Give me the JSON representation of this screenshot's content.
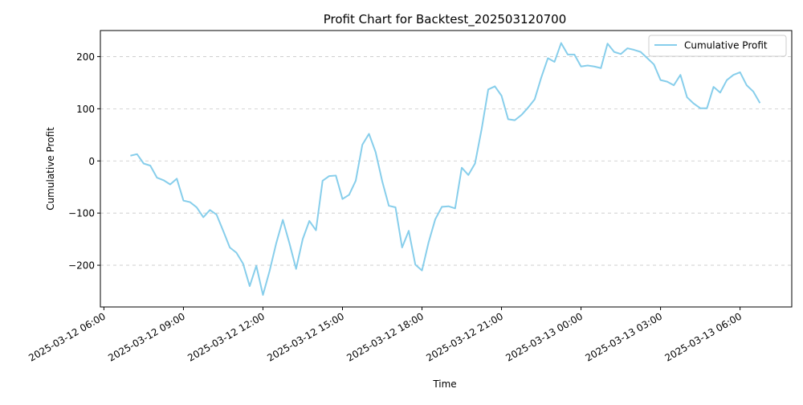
{
  "chart_data": {
    "type": "line",
    "title": "Profit Chart for Backtest_202503120700",
    "xlabel": "Time",
    "ylabel": "Cumulative Profit",
    "grid": "y-only, dashed",
    "legend_position": "top-right",
    "series": [
      {
        "name": "Cumulative Profit",
        "color": "#87CEEB",
        "points": [
          [
            "2025-03-12 07:00",
            10
          ],
          [
            "2025-03-12 07:15",
            13
          ],
          [
            "2025-03-12 07:30",
            -5
          ],
          [
            "2025-03-12 07:45",
            -9
          ],
          [
            "2025-03-12 08:00",
            -32
          ],
          [
            "2025-03-12 08:15",
            -37
          ],
          [
            "2025-03-12 08:30",
            -45
          ],
          [
            "2025-03-12 08:45",
            -34
          ],
          [
            "2025-03-12 09:00",
            -76
          ],
          [
            "2025-03-12 09:15",
            -79
          ],
          [
            "2025-03-12 09:30",
            -89
          ],
          [
            "2025-03-12 09:45",
            -108
          ],
          [
            "2025-03-12 10:00",
            -94
          ],
          [
            "2025-03-12 10:15",
            -103
          ],
          [
            "2025-03-12 10:30",
            -134
          ],
          [
            "2025-03-12 10:45",
            -166
          ],
          [
            "2025-03-12 11:00",
            -176
          ],
          [
            "2025-03-12 11:15",
            -197
          ],
          [
            "2025-03-12 11:30",
            -240
          ],
          [
            "2025-03-12 11:45",
            -201
          ],
          [
            "2025-03-12 12:00",
            -257
          ],
          [
            "2025-03-12 12:15",
            -211
          ],
          [
            "2025-03-12 12:30",
            -158
          ],
          [
            "2025-03-12 12:45",
            -113
          ],
          [
            "2025-03-12 13:00",
            -158
          ],
          [
            "2025-03-12 13:15",
            -207
          ],
          [
            "2025-03-12 13:30",
            -150
          ],
          [
            "2025-03-12 13:45",
            -115
          ],
          [
            "2025-03-12 14:00",
            -133
          ],
          [
            "2025-03-12 14:15",
            -38
          ],
          [
            "2025-03-12 14:30",
            -29
          ],
          [
            "2025-03-12 14:45",
            -28
          ],
          [
            "2025-03-12 15:00",
            -73
          ],
          [
            "2025-03-12 15:15",
            -65
          ],
          [
            "2025-03-12 15:30",
            -38
          ],
          [
            "2025-03-12 15:45",
            31
          ],
          [
            "2025-03-12 16:00",
            52
          ],
          [
            "2025-03-12 16:15",
            17
          ],
          [
            "2025-03-12 16:30",
            -39
          ],
          [
            "2025-03-12 16:45",
            -86
          ],
          [
            "2025-03-12 17:00",
            -89
          ],
          [
            "2025-03-12 17:15",
            -166
          ],
          [
            "2025-03-12 17:30",
            -134
          ],
          [
            "2025-03-12 17:45",
            -199
          ],
          [
            "2025-03-12 18:00",
            -210
          ],
          [
            "2025-03-12 18:15",
            -156
          ],
          [
            "2025-03-12 18:30",
            -112
          ],
          [
            "2025-03-12 18:45",
            -88
          ],
          [
            "2025-03-12 19:00",
            -87
          ],
          [
            "2025-03-12 19:15",
            -91
          ],
          [
            "2025-03-12 19:30",
            -13
          ],
          [
            "2025-03-12 19:45",
            -27
          ],
          [
            "2025-03-12 20:00",
            -5
          ],
          [
            "2025-03-12 20:15",
            61
          ],
          [
            "2025-03-12 20:30",
            137
          ],
          [
            "2025-03-12 20:45",
            143
          ],
          [
            "2025-03-12 21:00",
            125
          ],
          [
            "2025-03-12 21:15",
            80
          ],
          [
            "2025-03-12 21:30",
            78
          ],
          [
            "2025-03-12 21:45",
            88
          ],
          [
            "2025-03-12 22:00",
            102
          ],
          [
            "2025-03-12 22:15",
            118
          ],
          [
            "2025-03-12 22:30",
            160
          ],
          [
            "2025-03-12 22:45",
            197
          ],
          [
            "2025-03-12 23:00",
            190
          ],
          [
            "2025-03-12 23:15",
            226
          ],
          [
            "2025-03-12 23:30",
            204
          ],
          [
            "2025-03-12 23:45",
            204
          ],
          [
            "2025-03-13 00:00",
            181
          ],
          [
            "2025-03-13 00:15",
            183
          ],
          [
            "2025-03-13 00:30",
            181
          ],
          [
            "2025-03-13 00:45",
            178
          ],
          [
            "2025-03-13 01:00",
            225
          ],
          [
            "2025-03-13 01:15",
            209
          ],
          [
            "2025-03-13 01:30",
            205
          ],
          [
            "2025-03-13 01:45",
            216
          ],
          [
            "2025-03-13 02:00",
            213
          ],
          [
            "2025-03-13 02:15",
            209
          ],
          [
            "2025-03-13 02:30",
            197
          ],
          [
            "2025-03-13 02:45",
            185
          ],
          [
            "2025-03-13 03:00",
            155
          ],
          [
            "2025-03-13 03:15",
            152
          ],
          [
            "2025-03-13 03:30",
            145
          ],
          [
            "2025-03-13 03:45",
            165
          ],
          [
            "2025-03-13 04:00",
            122
          ],
          [
            "2025-03-13 04:15",
            110
          ],
          [
            "2025-03-13 04:30",
            101
          ],
          [
            "2025-03-13 04:45",
            101
          ],
          [
            "2025-03-13 05:00",
            142
          ],
          [
            "2025-03-13 05:15",
            131
          ],
          [
            "2025-03-13 05:30",
            155
          ],
          [
            "2025-03-13 05:45",
            165
          ],
          [
            "2025-03-13 06:00",
            170
          ],
          [
            "2025-03-13 06:15",
            145
          ],
          [
            "2025-03-13 06:30",
            133
          ],
          [
            "2025-03-13 06:45",
            111
          ]
        ]
      }
    ],
    "xlim": [
      "2025-03-12 05:52",
      "2025-03-13 07:57"
    ],
    "ylim": [
      -280,
      250
    ],
    "x_ticks": [
      {
        "value": "2025-03-12 06:00",
        "label": "2025-03-12 06:00"
      },
      {
        "value": "2025-03-12 09:00",
        "label": "2025-03-12 09:00"
      },
      {
        "value": "2025-03-12 12:00",
        "label": "2025-03-12 12:00"
      },
      {
        "value": "2025-03-12 15:00",
        "label": "2025-03-12 15:00"
      },
      {
        "value": "2025-03-12 18:00",
        "label": "2025-03-12 18:00"
      },
      {
        "value": "2025-03-12 21:00",
        "label": "2025-03-12 21:00"
      },
      {
        "value": "2025-03-13 00:00",
        "label": "2025-03-13 00:00"
      },
      {
        "value": "2025-03-13 03:00",
        "label": "2025-03-13 03:00"
      },
      {
        "value": "2025-03-13 06:00",
        "label": "2025-03-13 06:00"
      }
    ],
    "y_ticks": [
      {
        "value": -200,
        "label": "−200"
      },
      {
        "value": -100,
        "label": "−100"
      },
      {
        "value": 0,
        "label": "0"
      },
      {
        "value": 100,
        "label": "100"
      },
      {
        "value": 200,
        "label": "200"
      }
    ]
  }
}
